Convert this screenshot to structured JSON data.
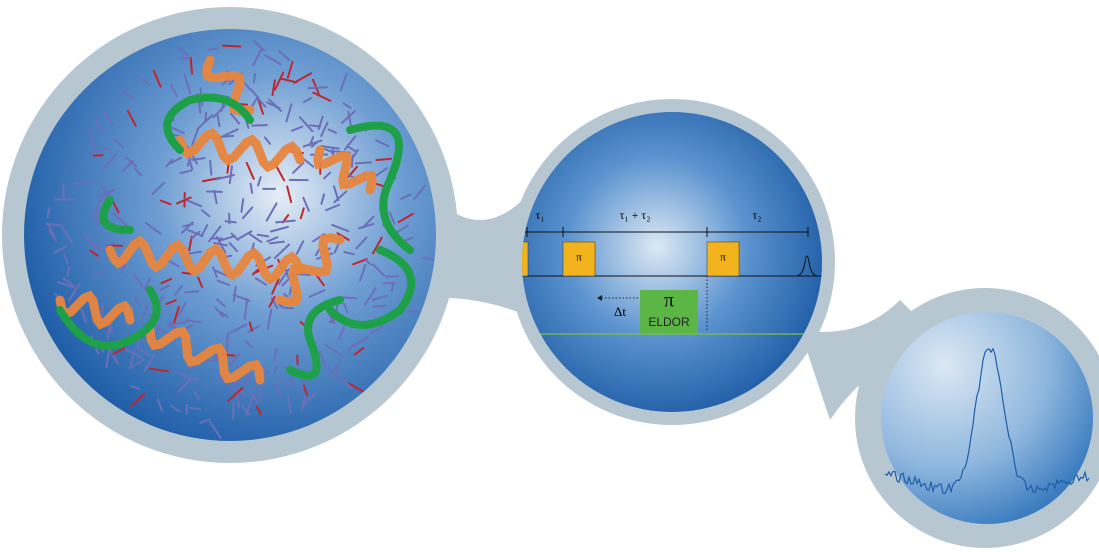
{
  "pulse_sequence": {
    "intervals": [
      "τ₁",
      "τ₁ + τ₂",
      "τ₂"
    ],
    "pulses": [
      "π",
      "π"
    ],
    "delay": "Δt",
    "eldor": {
      "symbol": "π",
      "label": "ELDOR"
    }
  }
}
